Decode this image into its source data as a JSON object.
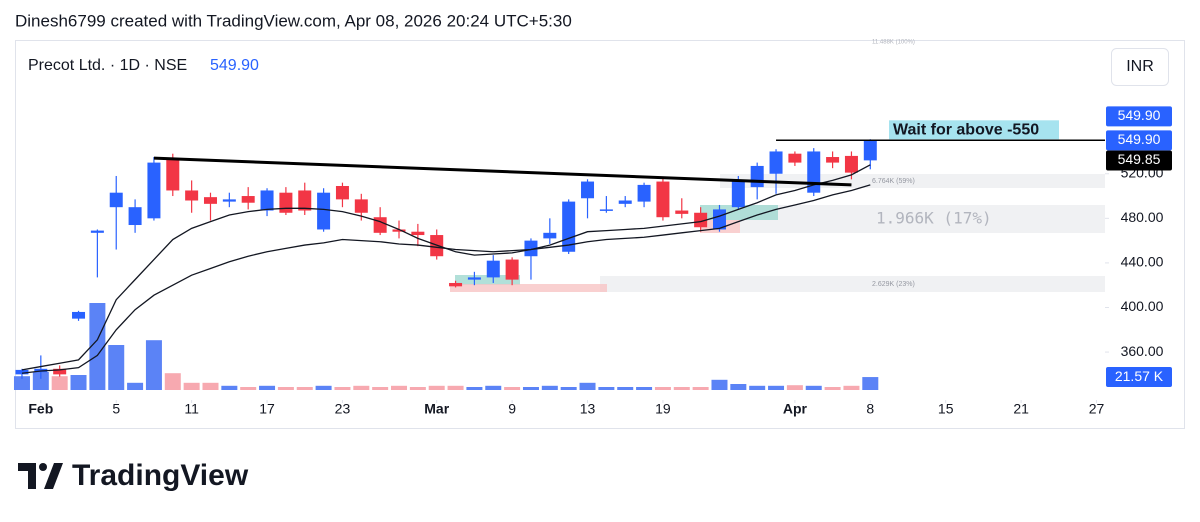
{
  "header": {
    "text": "Dinesh6799 created with TradingView.com, Apr 08, 2026 20:24 UTC+5:30"
  },
  "footer": {
    "brand": "TradingView"
  },
  "chart_data": {
    "type": "candlestick",
    "title": "Precot Ltd. · 1D · NSE",
    "last_price": {
      "value": 549.9,
      "label": "549.90"
    },
    "currency": "INR",
    "up_color": "#2962ff",
    "down_color": "#f23645",
    "volume_up_color": "#5b83f6",
    "volume_down_color": "#f7a9b0",
    "open": [
      340,
      342,
      345,
      390,
      467,
      490,
      474,
      480,
      533,
      505,
      499,
      495,
      500,
      487,
      503,
      505,
      470,
      509,
      497,
      481,
      470,
      468,
      465,
      422,
      425,
      427,
      443,
      446,
      462,
      450,
      498,
      487,
      493,
      495,
      513,
      487,
      485,
      470,
      490,
      508,
      520,
      538,
      503,
      535,
      536,
      532
    ],
    "high": [
      345,
      357,
      348,
      397,
      470,
      518,
      497,
      535,
      538,
      514,
      503,
      503,
      508,
      507,
      508,
      512,
      507,
      512,
      502,
      490,
      478,
      475,
      470,
      424,
      432,
      447,
      445,
      462,
      480,
      497,
      515,
      500,
      500,
      512,
      516,
      498,
      490,
      492,
      518,
      530,
      542,
      540,
      543,
      540,
      540,
      551
    ],
    "low": [
      336,
      336,
      338,
      388,
      427,
      452,
      467,
      478,
      500,
      485,
      478,
      490,
      488,
      482,
      483,
      483,
      468,
      490,
      478,
      465,
      462,
      455,
      443,
      418,
      420,
      422,
      420,
      425,
      457,
      448,
      480,
      485,
      490,
      490,
      478,
      480,
      468,
      468,
      488,
      497,
      502,
      527,
      500,
      525,
      515,
      524
    ],
    "close": [
      344,
      345,
      340,
      396,
      469,
      503,
      490,
      530,
      505,
      496,
      493,
      497,
      494,
      505,
      485,
      487,
      503,
      497,
      485,
      467,
      468,
      465,
      446,
      419,
      427,
      442,
      425,
      460,
      467,
      495,
      513,
      488,
      496,
      510,
      481,
      484,
      472,
      488,
      514,
      527,
      540,
      530,
      540,
      530,
      521,
      549.9
    ],
    "volume": [
      23,
      30,
      23,
      25,
      145,
      75,
      12,
      83,
      28,
      12,
      12,
      7,
      5,
      7,
      5,
      5,
      7,
      5,
      7,
      5,
      7,
      5,
      7,
      7,
      5,
      7,
      5,
      5,
      7,
      5,
      12,
      5,
      5,
      5,
      5,
      5,
      5,
      17,
      10,
      7,
      7,
      8,
      7,
      5,
      7,
      21.57
    ],
    "volume_label": "21.57 K",
    "volume_ylim": [
      0,
      300
    ],
    "series": [
      {
        "color": "#131722",
        "values": [
          344,
          347,
          350,
          353,
          371,
          407,
          425,
          443,
          461,
          471,
          477,
          483,
          486,
          488,
          489,
          489,
          488,
          486,
          482,
          477,
          470,
          462,
          456,
          450,
          447,
          448,
          449,
          452,
          456,
          462,
          468,
          469,
          470,
          471,
          473,
          475,
          477,
          482,
          488,
          494,
          501,
          505,
          510,
          514,
          519,
          528
        ]
      },
      {
        "color": "#131722",
        "values": [
          341,
          343,
          344,
          346,
          357,
          380,
          398,
          411,
          420,
          429,
          435,
          441,
          446,
          450,
          453,
          456,
          458,
          461,
          460,
          459,
          457,
          456,
          454,
          452,
          451,
          450,
          451,
          452,
          454,
          456,
          459,
          461,
          462,
          463,
          465,
          467,
          469,
          471,
          477,
          483,
          488,
          492,
          496,
          501,
          505,
          510
        ]
      }
    ],
    "trendline": {
      "x": [
        7,
        44
      ],
      "y": [
        534,
        510
      ]
    },
    "annotation": {
      "text": "Wait for above -550",
      "level": 550,
      "x": 40
    },
    "price_labels": [
      {
        "value": 549.9,
        "label": "549.90",
        "color": "#2962ff"
      },
      {
        "value": 549.9,
        "label": "549.90",
        "color": "#2962ff"
      },
      {
        "value": 549.85,
        "label": "549.85",
        "color": "#000000"
      }
    ],
    "volume_profile": [
      "11.488K (100%)",
      "6.764K (59%)",
      "1.966K (17%)",
      "2.629K (23%)"
    ],
    "xlim": [
      -0.37,
      57.45
    ],
    "ylim": [
      317,
      640
    ],
    "yticks": [
      {
        "value": 360,
        "label": "360.00"
      },
      {
        "value": 400,
        "label": "400.00"
      },
      {
        "value": 440,
        "label": "440.00"
      },
      {
        "value": 480,
        "label": "480.00"
      },
      {
        "value": 520,
        "label": "520.00"
      }
    ],
    "xticks": [
      {
        "value": 1,
        "label": "Feb"
      },
      5,
      {
        "value": 9,
        "label": "11"
      },
      {
        "value": 13,
        "label": "17"
      },
      {
        "value": 17,
        "label": "23"
      },
      {
        "value": 22,
        "label": "Mar"
      },
      {
        "value": 26,
        "label": "9"
      },
      {
        "value": 30,
        "label": "13"
      },
      {
        "value": 34,
        "label": "19"
      },
      {
        "value": 41,
        "label": "Apr"
      },
      {
        "value": 45,
        "label": "8"
      },
      {
        "value": 49,
        "label": "15"
      },
      {
        "value": 53,
        "label": "21"
      },
      {
        "value": 57,
        "label": "27"
      }
    ]
  }
}
